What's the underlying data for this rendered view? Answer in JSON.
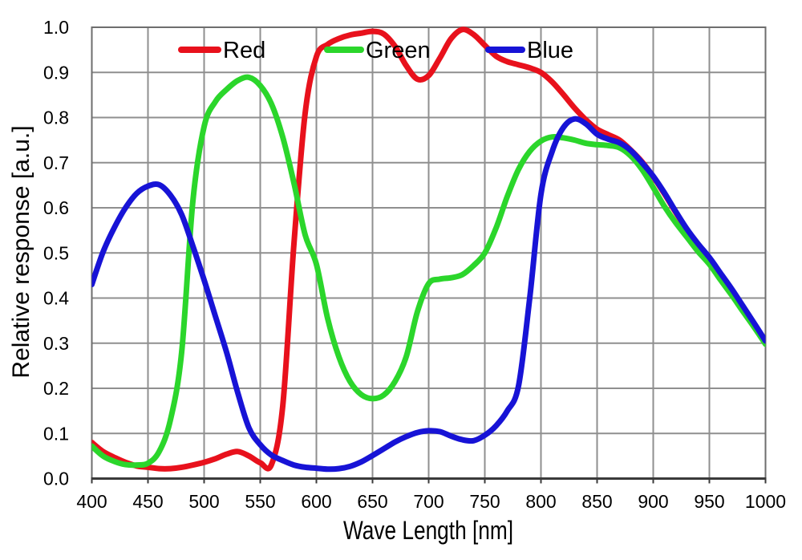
{
  "page": {
    "background": "#ffffff"
  },
  "chart_data": {
    "type": "line",
    "title": "",
    "xlabel": "Wave Length [nm]",
    "ylabel": "Relative response [a.u.]",
    "xlim": [
      400,
      1000
    ],
    "ylim": [
      0.0,
      1.0
    ],
    "grid": true,
    "x_tick_labels": [
      "400",
      "450",
      "500",
      "550",
      "600",
      "650",
      "700",
      "750",
      "800",
      "850",
      "900",
      "950",
      "1000"
    ],
    "y_tick_labels": [
      "0.0",
      "0.1",
      "0.2",
      "0.3",
      "0.4",
      "0.5",
      "0.6",
      "0.7",
      "0.8",
      "0.9",
      "1.0"
    ],
    "legend": {
      "position": "top-inside",
      "entries": [
        "Red",
        "Green",
        "Blue"
      ]
    },
    "colors": {
      "grid": "#8f8f8f",
      "border": "#6e6e6e",
      "axis": "#3a3a3a",
      "text": "#000000"
    },
    "x": [
      400,
      410,
      420,
      430,
      440,
      450,
      460,
      470,
      480,
      490,
      500,
      510,
      520,
      530,
      540,
      550,
      560,
      570,
      580,
      590,
      600,
      610,
      620,
      630,
      640,
      650,
      660,
      670,
      680,
      690,
      700,
      710,
      720,
      730,
      740,
      750,
      760,
      770,
      780,
      790,
      800,
      810,
      820,
      830,
      840,
      850,
      860,
      870,
      880,
      890,
      900,
      910,
      920,
      930,
      940,
      950,
      960,
      970,
      980,
      990,
      1000
    ],
    "series": [
      {
        "name": "Red",
        "color": "#e8111c",
        "values": [
          0.08,
          0.06,
          0.047,
          0.036,
          0.028,
          0.025,
          0.022,
          0.022,
          0.025,
          0.03,
          0.036,
          0.044,
          0.054,
          0.06,
          0.05,
          0.035,
          0.031,
          0.16,
          0.52,
          0.81,
          0.935,
          0.962,
          0.975,
          0.983,
          0.987,
          0.991,
          0.985,
          0.958,
          0.915,
          0.885,
          0.893,
          0.932,
          0.975,
          0.995,
          0.984,
          0.96,
          0.936,
          0.924,
          0.917,
          0.91,
          0.9,
          0.879,
          0.851,
          0.821,
          0.795,
          0.774,
          0.762,
          0.75,
          0.728,
          0.702,
          0.669,
          0.631,
          0.59,
          0.551,
          0.518,
          0.487,
          0.452,
          0.417,
          0.379,
          0.341,
          0.3
        ]
      },
      {
        "name": "Green",
        "color": "#2bd62b",
        "values": [
          0.072,
          0.05,
          0.038,
          0.031,
          0.03,
          0.034,
          0.06,
          0.13,
          0.28,
          0.615,
          0.78,
          0.835,
          0.862,
          0.882,
          0.889,
          0.871,
          0.83,
          0.757,
          0.655,
          0.54,
          0.475,
          0.355,
          0.27,
          0.215,
          0.186,
          0.177,
          0.185,
          0.215,
          0.27,
          0.37,
          0.432,
          0.442,
          0.445,
          0.452,
          0.472,
          0.5,
          0.555,
          0.625,
          0.685,
          0.725,
          0.748,
          0.757,
          0.755,
          0.75,
          0.743,
          0.74,
          0.738,
          0.733,
          0.715,
          0.685,
          0.645,
          0.603,
          0.567,
          0.535,
          0.503,
          0.475,
          0.44,
          0.406,
          0.37,
          0.335,
          0.298
        ]
      },
      {
        "name": "Blue",
        "color": "#1713d6",
        "values": [
          0.43,
          0.502,
          0.556,
          0.6,
          0.632,
          0.648,
          0.651,
          0.628,
          0.585,
          0.515,
          0.44,
          0.36,
          0.28,
          0.19,
          0.112,
          0.075,
          0.052,
          0.04,
          0.03,
          0.025,
          0.023,
          0.021,
          0.022,
          0.027,
          0.037,
          0.051,
          0.066,
          0.081,
          0.093,
          0.102,
          0.106,
          0.104,
          0.094,
          0.086,
          0.084,
          0.096,
          0.117,
          0.15,
          0.205,
          0.4,
          0.63,
          0.725,
          0.778,
          0.797,
          0.786,
          0.763,
          0.752,
          0.744,
          0.727,
          0.7,
          0.67,
          0.633,
          0.592,
          0.553,
          0.52,
          0.49,
          0.455,
          0.42,
          0.382,
          0.344,
          0.305
        ]
      }
    ]
  }
}
